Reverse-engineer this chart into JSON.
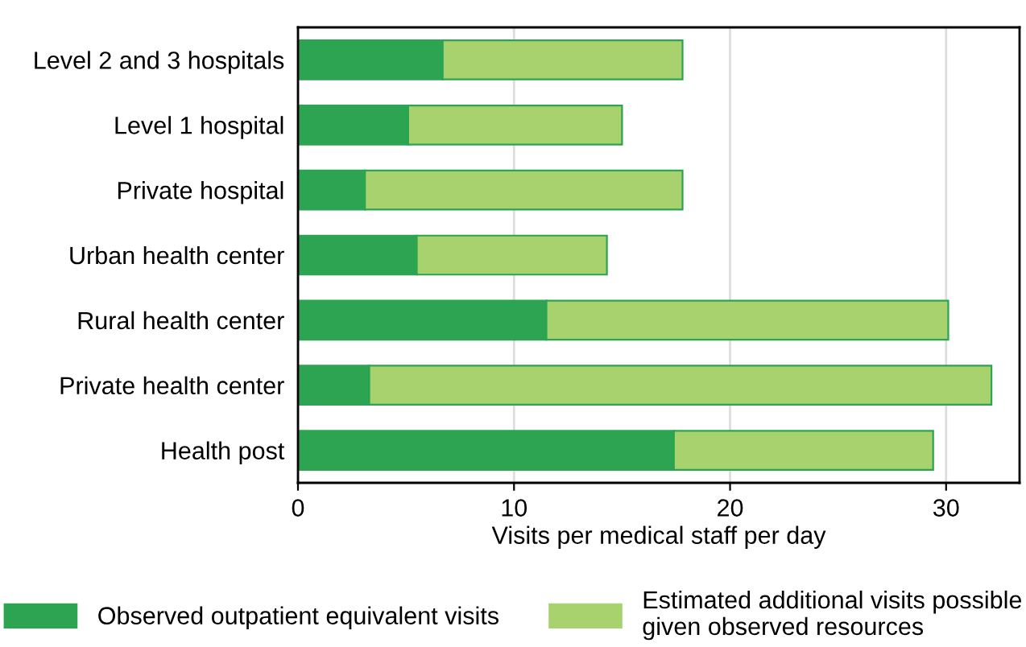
{
  "chart_data": {
    "type": "bar",
    "orientation": "horizontal",
    "stacked": true,
    "xlabel": "Visits per medical staff per day",
    "categories": [
      "Level 2 and 3 hospitals",
      "Level 1 hospital",
      "Private hospital",
      "Urban health center",
      "Rural health center",
      "Private health center",
      "Health post"
    ],
    "series": [
      {
        "name": "Observed outpatient equivalent visits",
        "color": "#2ca452",
        "values": [
          6.7,
          5.1,
          3.1,
          5.5,
          11.5,
          3.3,
          17.4
        ]
      },
      {
        "name": "Estimated additional visits possible\ngiven observed resources",
        "color": "#a8d26e",
        "values": [
          11.1,
          9.9,
          14.7,
          8.8,
          18.6,
          28.8,
          12.0
        ]
      }
    ],
    "xlim": [
      0,
      33.4
    ],
    "xticks": [
      0,
      10,
      20,
      30
    ],
    "grid": "x",
    "legend": "bottom"
  }
}
